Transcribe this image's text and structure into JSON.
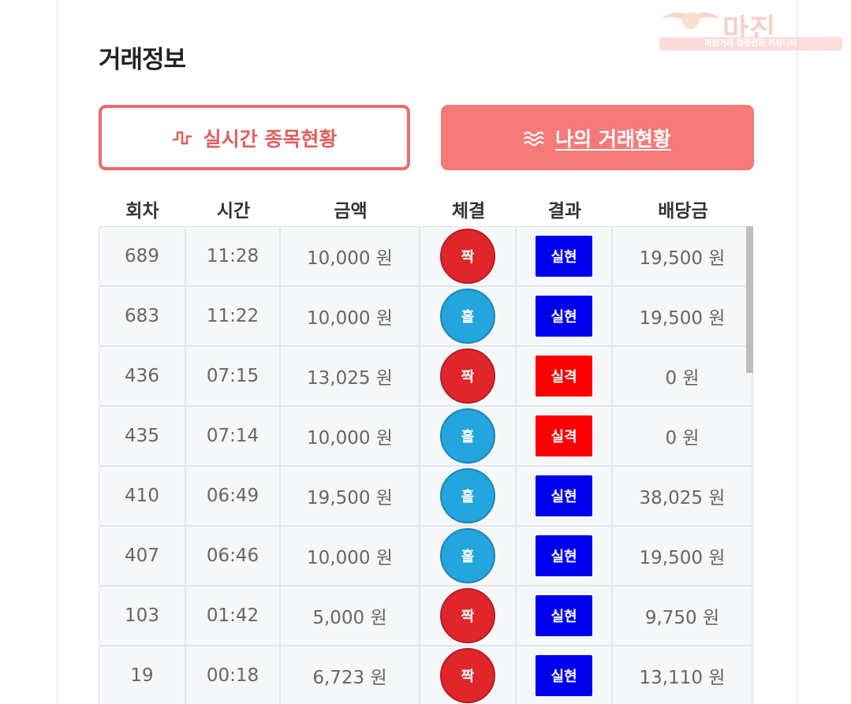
{
  "section_title": "거래정보",
  "buttons": {
    "live": {
      "label": "실시간 종목현황",
      "icon": "pulse-icon"
    },
    "mine": {
      "label": "나의 거래현황",
      "icon": "waves-icon"
    }
  },
  "table": {
    "headers": [
      "회차",
      "시간",
      "금액",
      "체결",
      "결과",
      "배당금"
    ],
    "rows": [
      {
        "round": "689",
        "time": "11:28",
        "amount": "10,000 원",
        "pick": "짝",
        "pick_color": "red",
        "result": "실현",
        "result_color": "blue",
        "payout": "19,500 원"
      },
      {
        "round": "683",
        "time": "11:22",
        "amount": "10,000 원",
        "pick": "홀",
        "pick_color": "blue",
        "result": "실현",
        "result_color": "blue",
        "payout": "19,500 원"
      },
      {
        "round": "436",
        "time": "07:15",
        "amount": "13,025 원",
        "pick": "짝",
        "pick_color": "red",
        "result": "실격",
        "result_color": "red",
        "payout": "0 원"
      },
      {
        "round": "435",
        "time": "07:14",
        "amount": "10,000 원",
        "pick": "홀",
        "pick_color": "blue",
        "result": "실격",
        "result_color": "red",
        "payout": "0 원"
      },
      {
        "round": "410",
        "time": "06:49",
        "amount": "19,500 원",
        "pick": "홀",
        "pick_color": "blue",
        "result": "실현",
        "result_color": "blue",
        "payout": "38,025 원"
      },
      {
        "round": "407",
        "time": "06:46",
        "amount": "10,000 원",
        "pick": "홀",
        "pick_color": "blue",
        "result": "실현",
        "result_color": "blue",
        "payout": "19,500 원"
      },
      {
        "round": "103",
        "time": "01:42",
        "amount": "5,000 원",
        "pick": "짝",
        "pick_color": "red",
        "result": "실현",
        "result_color": "blue",
        "payout": "9,750 원"
      },
      {
        "round": "19",
        "time": "00:18",
        "amount": "6,723 원",
        "pick": "짝",
        "pick_color": "red",
        "result": "실현",
        "result_color": "blue",
        "payout": "13,110 원"
      }
    ]
  },
  "watermark": {
    "main": "마진",
    "sub": "마진거래 검증전문 커뮤니티"
  },
  "colors": {
    "accent": "#f57a78",
    "accent_border": "#ec6b6b",
    "odd": "#23a5dd",
    "even": "#e0262a",
    "success": "#0000ee",
    "fail": "#fa0000"
  }
}
